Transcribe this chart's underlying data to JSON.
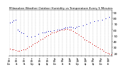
{
  "title": "Milwaukee Weather Outdoor Humidity vs Temperature Every 5 Minutes",
  "title_fontsize": 3.0,
  "background_color": "#ffffff",
  "humidity_color": "#0000bb",
  "temp_color": "#cc0000",
  "ylabel_right_fontsize": 3.2,
  "xlabel_fontsize": 2.0,
  "yticks_right": [
    20,
    30,
    40,
    50,
    60,
    70,
    80,
    90
  ],
  "ylim": [
    15,
    95
  ],
  "xlim": [
    0,
    108
  ],
  "humidity_x": [
    1,
    3,
    5,
    7,
    9,
    11,
    13,
    15,
    19,
    23,
    27,
    31,
    35,
    37,
    39,
    41,
    43,
    47,
    51,
    53,
    55,
    57,
    59,
    61,
    63,
    65,
    67,
    69,
    71,
    73,
    77,
    81,
    85,
    89,
    93,
    97,
    101,
    105
  ],
  "humidity_y": [
    72,
    74,
    76,
    78,
    60,
    58,
    56,
    54,
    50,
    48,
    50,
    53,
    55,
    56,
    57,
    58,
    58,
    59,
    60,
    61,
    62,
    63,
    64,
    64,
    65,
    65,
    64,
    63,
    65,
    66,
    68,
    70,
    72,
    75,
    76,
    78,
    80,
    82
  ],
  "temp_x": [
    1,
    3,
    5,
    7,
    9,
    11,
    13,
    15,
    17,
    19,
    21,
    23,
    25,
    27,
    29,
    31,
    33,
    35,
    37,
    39,
    41,
    43,
    45,
    47,
    49,
    51,
    53,
    55,
    57,
    59,
    61,
    63,
    65,
    67,
    69,
    71,
    73,
    75,
    77,
    79,
    81,
    83,
    85,
    87,
    89,
    91,
    93,
    95,
    97,
    99,
    101,
    103,
    105,
    107
  ],
  "temp_y": [
    28,
    27,
    26,
    25,
    24,
    24,
    25,
    26,
    27,
    29,
    31,
    33,
    35,
    37,
    39,
    41,
    43,
    45,
    47,
    49,
    51,
    53,
    55,
    56,
    57,
    58,
    59,
    60,
    61,
    62,
    62,
    61,
    60,
    58,
    56,
    54,
    52,
    49,
    47,
    44,
    42,
    40,
    38,
    36,
    34,
    32,
    30,
    28,
    26,
    24,
    22,
    20,
    19,
    18
  ],
  "xtick_positions": [
    0,
    4,
    8,
    12,
    16,
    20,
    24,
    28,
    32,
    36,
    40,
    44,
    48,
    52,
    56,
    60,
    64,
    68,
    72,
    76,
    80,
    84,
    88,
    92,
    96,
    100,
    104,
    108
  ],
  "xtick_labels_show": [
    0,
    8,
    16,
    24,
    32,
    40,
    48,
    56,
    64,
    72,
    80,
    88,
    96,
    104
  ],
  "xtick_label_texts": [
    "Fr\n8/1\n12a",
    "Fr\n8/1\n4a",
    "Fr\n8/1\n8a",
    "Fr\n8/1\n12p",
    "Fr\n8/1\n4p",
    "Fr\n8/1\n8p",
    "Sa\n8/2\n12a",
    "Sa\n8/2\n4a",
    "Sa\n8/2\n8a",
    "Sa\n8/2\n12p",
    "Sa\n8/2\n4p",
    "Sa\n8/2\n8p",
    "Su\n8/3\n12a",
    "Su\n8/3\n4a"
  ],
  "grid_color": "#bbbbbb",
  "dot_size": 0.5
}
